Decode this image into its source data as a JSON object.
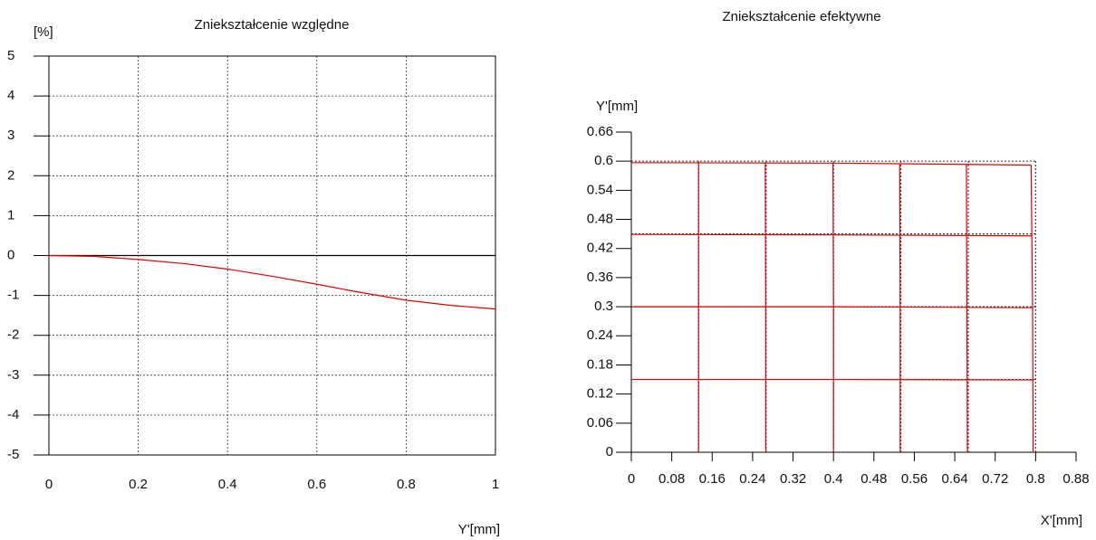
{
  "chart_data": [
    {
      "type": "line",
      "title": "Zniekształcenie względne",
      "ylabel": "[%]",
      "xlabel": "Y'[mm]",
      "xlim": [
        0,
        1
      ],
      "xticks": [
        0,
        0.2,
        0.4,
        0.6,
        0.8,
        1
      ],
      "ylim": [
        -5,
        5
      ],
      "yticks": [
        -5,
        -4,
        -3,
        -2,
        -1,
        0,
        1,
        2,
        3,
        4,
        5
      ],
      "grid": true,
      "frame": true,
      "zero_line": true,
      "series": [
        {
          "color": "#e00000",
          "x": [
            0,
            0.1,
            0.2,
            0.3,
            0.4,
            0.5,
            0.6,
            0.7,
            0.8,
            0.9,
            1
          ],
          "values": [
            0,
            -0.02,
            -0.1,
            -0.2,
            -0.34,
            -0.52,
            -0.72,
            -0.93,
            -1.12,
            -1.25,
            -1.34
          ]
        }
      ]
    },
    {
      "type": "grid",
      "title": "Zniekształcenie efektywne",
      "ylabel": "Y'[mm]",
      "xlabel": "X'[mm]",
      "xlim": [
        0,
        0.88
      ],
      "xticks": [
        0,
        0.08,
        0.16,
        0.24,
        0.32,
        0.4,
        0.48,
        0.56,
        0.64,
        0.72,
        0.8,
        0.88
      ],
      "ylim": [
        0,
        0.66
      ],
      "yticks": [
        0,
        0.06,
        0.12,
        0.18,
        0.24,
        0.3,
        0.36,
        0.42,
        0.48,
        0.54,
        0.6,
        0.66
      ],
      "reference_grid": {
        "color": "#444444",
        "dashed": true,
        "lines": [
          {
            "x": [
              0.1333,
              0.1333
            ],
            "y": [
              0,
              0.6
            ]
          },
          {
            "x": [
              0.2667,
              0.2667
            ],
            "y": [
              0,
              0.6
            ]
          },
          {
            "x": [
              0.4,
              0.4
            ],
            "y": [
              0,
              0.6
            ]
          },
          {
            "x": [
              0.5333,
              0.5333
            ],
            "y": [
              0,
              0.6
            ]
          },
          {
            "x": [
              0.6667,
              0.6667
            ],
            "y": [
              0,
              0.6
            ]
          },
          {
            "x": [
              0.8,
              0.8
            ],
            "y": [
              0,
              0.6
            ]
          },
          {
            "x": [
              0,
              0.8
            ],
            "y": [
              0.15,
              0.15
            ]
          },
          {
            "x": [
              0,
              0.8
            ],
            "y": [
              0.3,
              0.3
            ]
          },
          {
            "x": [
              0,
              0.8
            ],
            "y": [
              0.45,
              0.45
            ]
          },
          {
            "x": [
              0,
              0.8
            ],
            "y": [
              0.6,
              0.6
            ]
          }
        ]
      },
      "distorted_grid": {
        "color": "#e00000",
        "dashed": false,
        "lines": [
          {
            "x": [
              0.133,
              0.133,
              0.133
            ],
            "y": [
              0,
              0.3,
              0.597
            ]
          },
          {
            "x": [
              0.266,
              0.266,
              0.265
            ],
            "y": [
              0,
              0.3,
              0.596
            ]
          },
          {
            "x": [
              0.4,
              0.4,
              0.399
            ],
            "y": [
              0,
              0.3,
              0.596
            ]
          },
          {
            "x": [
              0.532,
              0.532,
              0.531
            ],
            "y": [
              0,
              0.3,
              0.595
            ]
          },
          {
            "x": [
              0.665,
              0.664,
              0.663
            ],
            "y": [
              0,
              0.3,
              0.594
            ]
          },
          {
            "x": [
              0.795,
              0.794,
              0.791
            ],
            "y": [
              0,
              0.3,
              0.592
            ]
          },
          {
            "x": [
              0,
              0.4,
              0.795
            ],
            "y": [
              0.15,
              0.15,
              0.149
            ]
          },
          {
            "x": [
              0,
              0.4,
              0.794
            ],
            "y": [
              0.3,
              0.3,
              0.298
            ]
          },
          {
            "x": [
              0,
              0.4,
              0.793
            ],
            "y": [
              0.449,
              0.448,
              0.446
            ]
          },
          {
            "x": [
              0,
              0.4,
              0.791
            ],
            "y": [
              0.597,
              0.596,
              0.592
            ]
          }
        ]
      }
    }
  ]
}
